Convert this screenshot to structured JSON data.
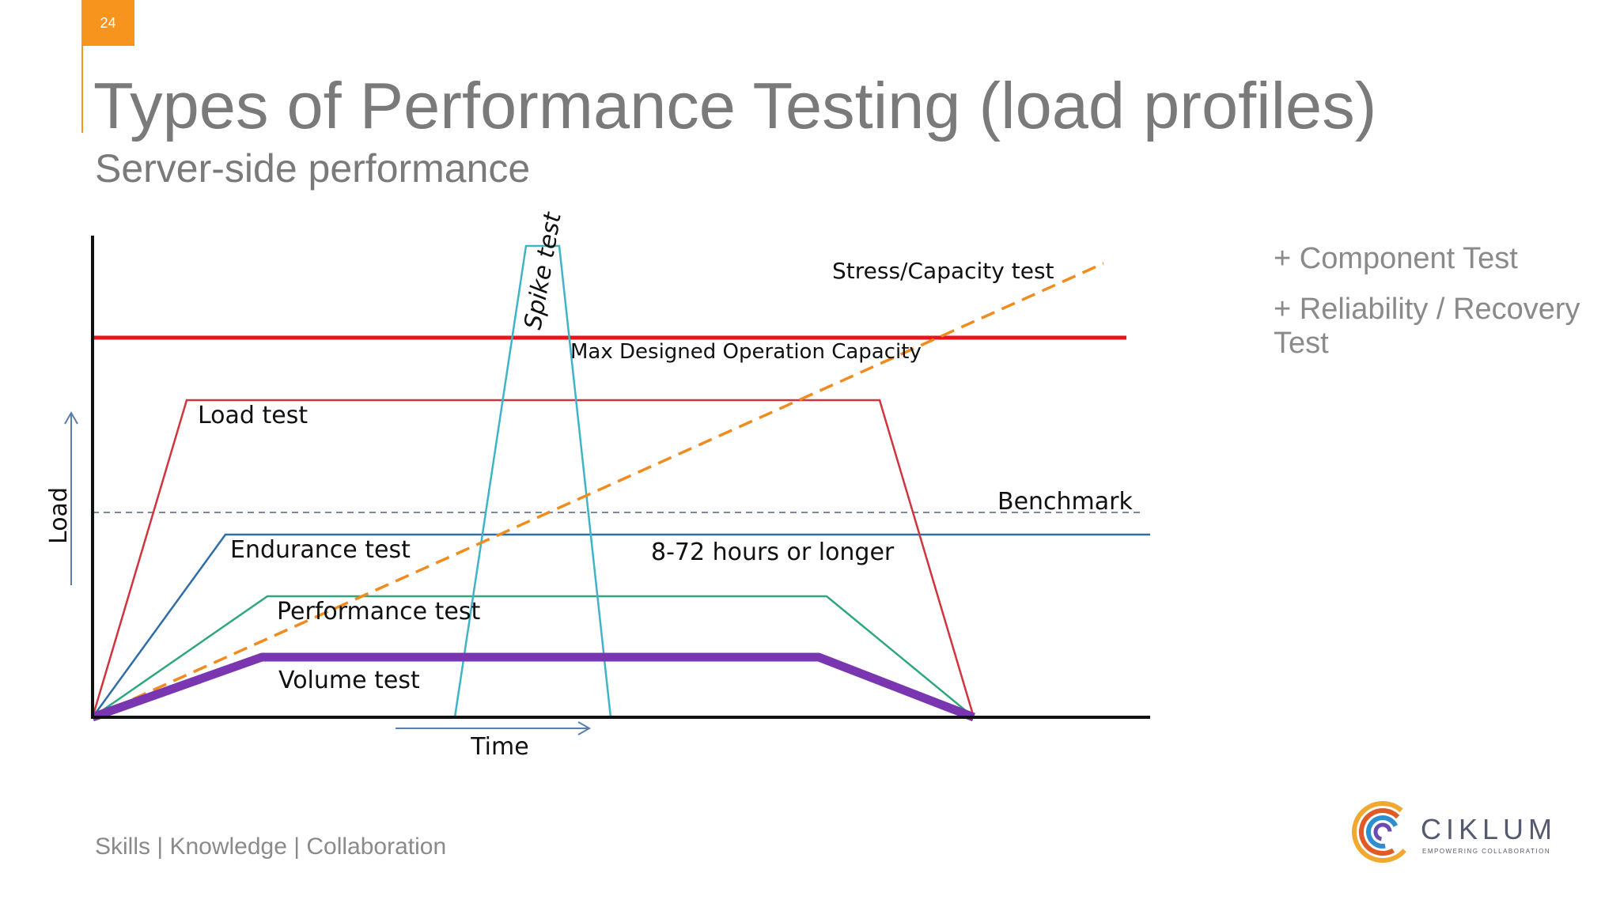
{
  "slide": {
    "number": "24",
    "title": "Types of Performance Testing (load profiles)",
    "subtitle": "Server-side performance",
    "footer": "Skills | Knowledge | Collaboration"
  },
  "side_notes": [
    "+ Component Test",
    "+ Reliability / Recovery Test"
  ],
  "diagram": {
    "axis_y_label": "Load",
    "axis_x_label": "Time",
    "labels": {
      "stress": "Stress/Capacity test",
      "max_capacity": "Max Designed Operation Capacity",
      "spike": "Spike test",
      "load": "Load test",
      "benchmark": "Benchmark",
      "endurance": "Endurance test",
      "duration": "8-72 hours or longer",
      "performance": "Performance test",
      "volume": "Volume test"
    },
    "colors": {
      "max_capacity": "#e8141c",
      "load": "#d0343e",
      "spike": "#3fb4c8",
      "stress": "#f08c1e",
      "benchmark": "#7a8a9a",
      "endurance": "#2e6da8",
      "performance": "#2fa680",
      "volume": "#7a35b0",
      "axis": "#111111",
      "axis_arrow": "#5a7fa8"
    }
  },
  "logo": {
    "name": "CIKLUM",
    "tagline": "EMPOWERING COLLABORATION",
    "icon": "ciklum-c-logo-icon"
  }
}
